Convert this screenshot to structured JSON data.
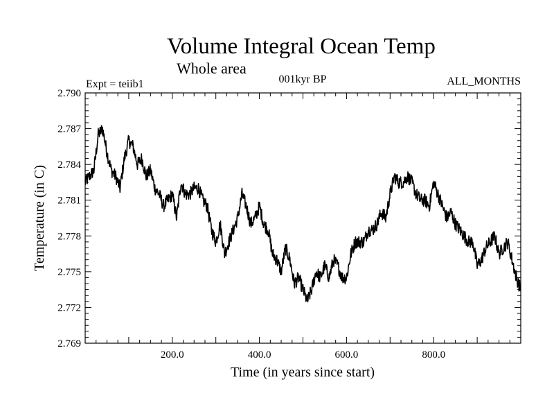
{
  "chart_data": {
    "type": "line",
    "title": "Volume Integral Ocean Temp",
    "subtitle": "Whole area",
    "annotations": {
      "left": "Expt = teiib1",
      "center": "001kyr BP",
      "right": "ALL_MONTHS"
    },
    "xlabel": "Time (in years since start)",
    "ylabel": "Temperature (in C)",
    "xlim": [
      0,
      1000
    ],
    "ylim": [
      2.769,
      2.79
    ],
    "x_ticks": [
      200,
      400,
      600,
      800
    ],
    "x_tick_labels": [
      "200.0",
      "400.0",
      "600.0",
      "800.0"
    ],
    "y_ticks": [
      2.769,
      2.772,
      2.775,
      2.778,
      2.781,
      2.784,
      2.787,
      2.79
    ],
    "y_tick_labels": [
      "2.769",
      "2.772",
      "2.775",
      "2.778",
      "2.781",
      "2.784",
      "2.787",
      "2.790"
    ],
    "grid": false,
    "line_color": "#000000",
    "series": [
      {
        "x": [
          0,
          10,
          20,
          30,
          40,
          50,
          60,
          70,
          80,
          90,
          100,
          110,
          120,
          130,
          140,
          150,
          160,
          170,
          180,
          190,
          200,
          210,
          220,
          230,
          240,
          250,
          260,
          270,
          280,
          290,
          300,
          310,
          320,
          330,
          340,
          350,
          360,
          370,
          380,
          390,
          400,
          410,
          420,
          430,
          440,
          450,
          460,
          470,
          480,
          490,
          500,
          510,
          520,
          530,
          540,
          550,
          560,
          570,
          580,
          590,
          600,
          610,
          620,
          630,
          640,
          650,
          660,
          670,
          680,
          690,
          700,
          710,
          720,
          730,
          740,
          750,
          760,
          770,
          780,
          790,
          800,
          810,
          820,
          830,
          840,
          850,
          860,
          870,
          880,
          890,
          900,
          910,
          920,
          930,
          940,
          950,
          960,
          970,
          980,
          990,
          1000
        ],
        "values": [
          2.7825,
          2.783,
          2.7835,
          2.7865,
          2.787,
          2.785,
          2.7835,
          2.783,
          2.782,
          2.7845,
          2.786,
          2.7855,
          2.784,
          2.7845,
          2.783,
          2.7835,
          2.782,
          2.7815,
          2.7805,
          2.781,
          2.7815,
          2.7795,
          2.7825,
          2.7815,
          2.7815,
          2.782,
          2.782,
          2.781,
          2.7805,
          2.7785,
          2.7775,
          2.779,
          2.7765,
          2.7775,
          2.7785,
          2.7795,
          2.7815,
          2.7805,
          2.779,
          2.7795,
          2.7805,
          2.779,
          2.7785,
          2.7765,
          2.776,
          2.775,
          2.777,
          2.776,
          2.774,
          2.7745,
          2.7735,
          2.7725,
          2.7735,
          2.775,
          2.7745,
          2.7755,
          2.7745,
          2.776,
          2.7755,
          2.7745,
          2.7745,
          2.7765,
          2.7775,
          2.7775,
          2.7775,
          2.7785,
          2.7785,
          2.779,
          2.78,
          2.7795,
          2.7815,
          2.783,
          2.7825,
          2.7825,
          2.783,
          2.7825,
          2.7815,
          2.781,
          2.781,
          2.7805,
          2.7825,
          2.7815,
          2.7805,
          2.7795,
          2.78,
          2.779,
          2.7785,
          2.778,
          2.7775,
          2.7775,
          2.7755,
          2.776,
          2.777,
          2.7775,
          2.778,
          2.7765,
          2.777,
          2.7775,
          2.776,
          2.7745,
          2.7735
        ]
      }
    ]
  }
}
